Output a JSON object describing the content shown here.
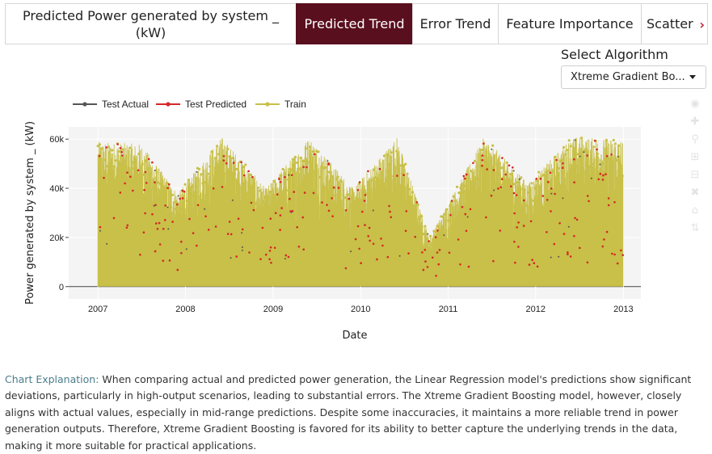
{
  "tabs": {
    "title": "Predicted Power generated by system _ (kW)",
    "items": [
      {
        "label": "Predicted Trend",
        "active": true
      },
      {
        "label": "Error Trend",
        "active": false
      },
      {
        "label": "Feature Importance",
        "active": false
      },
      {
        "label": "Scatter",
        "active": false
      }
    ],
    "more_icon": "chevron-right-icon"
  },
  "algorithm": {
    "label": "Select Algorithm",
    "selected": "Xtreme Gradient Bo..."
  },
  "chart_data": {
    "type": "line",
    "legend": [
      {
        "name": "Test Actual",
        "color": "#555555"
      },
      {
        "name": "Test Predicted",
        "color": "#d62728"
      },
      {
        "name": "Train",
        "color": "#c8c048"
      }
    ],
    "legend_position": "top-left",
    "xlabel": "Date",
    "ylabel": "Power generated by system _ (kW)",
    "x_ticks": [
      "2007",
      "2008",
      "2009",
      "2010",
      "2011",
      "2012",
      "2013"
    ],
    "y_ticks": [
      "0",
      "20k",
      "40k",
      "60k"
    ],
    "xlim": [
      "2006-09-01",
      "2013-03-15"
    ],
    "ylim": [
      -5000,
      65000
    ],
    "data_range_x": [
      "2007-01-01",
      "2012-12-31"
    ],
    "seasonal_peak_envelope": [
      {
        "x": "2007-01-01",
        "y": 59000
      },
      {
        "x": "2007-07-01",
        "y": 58000
      },
      {
        "x": "2007-12-01",
        "y": 38000
      },
      {
        "x": "2008-06-01",
        "y": 61000
      },
      {
        "x": "2008-12-01",
        "y": 40000
      },
      {
        "x": "2009-06-01",
        "y": 61000
      },
      {
        "x": "2009-12-01",
        "y": 40000
      },
      {
        "x": "2010-06-01",
        "y": 61000
      },
      {
        "x": "2010-10-15",
        "y": 20000
      },
      {
        "x": "2011-06-01",
        "y": 61000
      },
      {
        "x": "2011-12-01",
        "y": 42000
      },
      {
        "x": "2012-06-01",
        "y": 61000
      },
      {
        "x": "2012-12-31",
        "y": 60000
      }
    ],
    "grid": true,
    "plot_bgcolor": "#f4f4f4"
  },
  "explanation": {
    "label": "Chart Explanation:",
    "text": "When comparing actual and predicted power generation, the Linear Regression model's predictions show significant deviations, particularly in high-output scenarios, leading to substantial errors. The Xtreme Gradient Boosting model, however, closely aligns with actual values, especially in mid-range predictions. Despite some inaccuracies, it maintains a more reliable trend in power generation outputs. Therefore, Xtreme Gradient Boosting is favored for its ability to better capture the underlying trends in the data, making it more suitable for practical applications."
  },
  "modebar": [
    "camera-icon",
    "pan-icon",
    "zoom-icon",
    "zoom-in-icon",
    "zoom-out-icon",
    "autoscale-icon",
    "home-icon",
    "spike-icon"
  ]
}
